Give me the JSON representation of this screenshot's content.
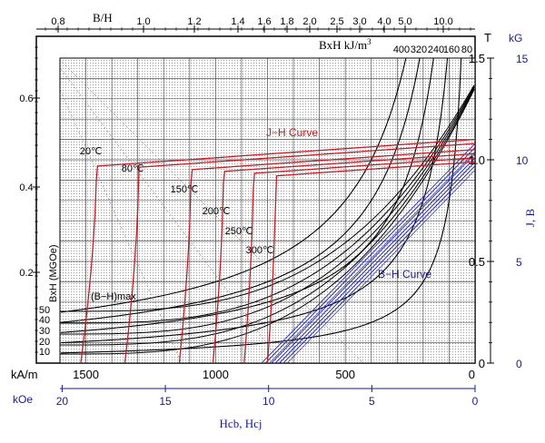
{
  "chart_data": {
    "type": "line",
    "colors": {
      "jh": "#c0202a",
      "bh": "#2a2aa8",
      "bh_product": "#000000",
      "axis_blue": "#1a1a8c",
      "grid": "#555555"
    },
    "axes": {
      "x_kam": {
        "label": "kA/m",
        "ticks": [
          "1500",
          "1000",
          "500",
          "0"
        ],
        "values": [
          1500,
          1000,
          500,
          0
        ],
        "range": [
          1600,
          0
        ]
      },
      "x_koe": {
        "label": "kOe",
        "ticks": [
          "20",
          "15",
          "10",
          "5",
          "0"
        ],
        "values": [
          20,
          15,
          10,
          5,
          0
        ]
      },
      "x_title": "Hcb,  Hcj",
      "y_t": {
        "label": "T",
        "ticks": [
          "1.5",
          "1.0",
          "0.5",
          "0"
        ],
        "values": [
          1.5,
          1.0,
          0.5,
          0
        ],
        "range": [
          0,
          1.5
        ]
      },
      "y_kg": {
        "label": "kG",
        "ticks": [
          "15",
          "10",
          "5",
          "0"
        ],
        "values": [
          15,
          10,
          5,
          0
        ]
      },
      "y_title": "J,  B",
      "bh_ratio": {
        "label": "B/H",
        "ticks": [
          "0.8",
          "1.0",
          "1.2",
          "1.4",
          "1.6",
          "1.8",
          "2.0",
          "2.5",
          "3.0",
          "4.0",
          "5.0",
          "10.0"
        ]
      },
      "left_ratio": {
        "ticks": [
          "0.6",
          "0.4",
          "0.2"
        ]
      },
      "bxh_axis": {
        "label": "BxH kJ/m",
        "superscript": "3",
        "ticks": [
          "400",
          "320",
          "240",
          "160",
          "80"
        ]
      },
      "mgoe_axis": {
        "label": "BxH (MGOe)",
        "ticks": [
          "50",
          "40",
          "30",
          "20",
          "10"
        ]
      }
    },
    "annotations": {
      "jh_curve": "J−H Curve",
      "bh_curve": "B−H Curve",
      "bhmax": "(B−H)max"
    },
    "series": [
      {
        "name": "20℃",
        "curve": "J-H",
        "Jr": 1.1,
        "Hcj": 1520
      },
      {
        "name": "80℃",
        "curve": "J-H",
        "Jr": 1.08,
        "Hcj": 1350
      },
      {
        "name": "150℃",
        "curve": "J-H",
        "Jr": 1.05,
        "Hcj": 1140
      },
      {
        "name": "200℃",
        "curve": "J-H",
        "Jr": 1.03,
        "Hcj": 1010
      },
      {
        "name": "250℃",
        "curve": "J-H",
        "Jr": 1.01,
        "Hcj": 890
      },
      {
        "name": "300℃",
        "curve": "J-H",
        "Jr": 0.99,
        "Hcj": 800
      }
    ],
    "bh_products_kJ": [
      80,
      160,
      240,
      320,
      400
    ],
    "bh_products_mgoe": [
      10,
      20,
      30,
      40,
      50
    ]
  }
}
